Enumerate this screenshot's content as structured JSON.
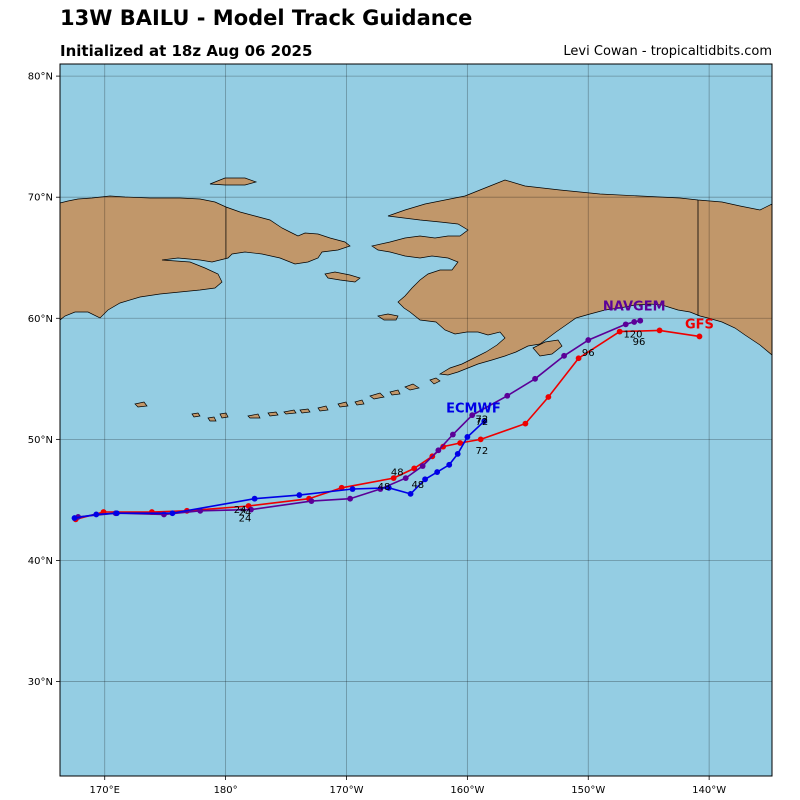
{
  "header": {
    "title": "13W BAILU - Model Track Guidance",
    "subtitle": "Initialized at 18z Aug 06 2025",
    "credit": "Levi Cowan - tropicaltidbits.com"
  },
  "colors": {
    "ocean": "#94cde3",
    "land": "#c1976a",
    "gfs": "#ee0000",
    "navgem": "#5b0098",
    "ecmwf": "#0000e6"
  },
  "map": {
    "lon_range": [
      166.3,
      225.2
    ],
    "lat_range": [
      22.2,
      81.0
    ],
    "lat_ticks": [
      "30°N",
      "40°N",
      "50°N",
      "60°N",
      "70°N",
      "80°N"
    ],
    "lon_ticks": [
      "170°E",
      "180°",
      "170°W",
      "160°W",
      "150°W",
      "140°W"
    ]
  },
  "chart_data": {
    "type": "scatter",
    "title": "13W BAILU - Model Track Guidance",
    "series": [
      {
        "name": "GFS",
        "label": "GFS",
        "color": "#ee0000",
        "points": [
          [
            167.6,
            43.4
          ],
          [
            169.9,
            44.0
          ],
          [
            173.9,
            44.0
          ],
          [
            176.8,
            44.1
          ],
          [
            181.9,
            44.5
          ],
          [
            186.9,
            45.1
          ],
          [
            189.6,
            46.0
          ],
          [
            193.9,
            46.8
          ],
          [
            195.6,
            47.6
          ],
          [
            197.1,
            48.6
          ],
          [
            198.0,
            49.4
          ],
          [
            199.4,
            49.7
          ],
          [
            201.1,
            50.0
          ],
          [
            204.8,
            51.3
          ],
          [
            206.7,
            53.5
          ],
          [
            209.2,
            56.7
          ],
          [
            212.6,
            58.9
          ],
          [
            215.9,
            59.0
          ],
          [
            219.2,
            58.5
          ]
        ],
        "hour_labels": [
          [
            "24",
            181.6,
            43.2
          ],
          [
            "48",
            193.1,
            45.8
          ],
          [
            "72",
            201.2,
            48.8
          ],
          [
            "96",
            214.2,
            57.8
          ]
        ]
      },
      {
        "name": "NAVGEM",
        "label": "NAVGEM",
        "color": "#5b0098",
        "points": [
          [
            167.8,
            43.6
          ],
          [
            170.9,
            43.9
          ],
          [
            174.9,
            43.8
          ],
          [
            177.9,
            44.1
          ],
          [
            182.1,
            44.2
          ],
          [
            187.1,
            44.9
          ],
          [
            190.3,
            45.1
          ],
          [
            192.8,
            45.9
          ],
          [
            194.9,
            46.8
          ],
          [
            196.3,
            47.8
          ],
          [
            197.6,
            49.1
          ],
          [
            198.8,
            50.4
          ],
          [
            200.4,
            52.0
          ],
          [
            203.3,
            53.6
          ],
          [
            205.6,
            55.0
          ],
          [
            208.0,
            56.9
          ],
          [
            210.0,
            58.2
          ],
          [
            213.1,
            59.5
          ],
          [
            213.8,
            59.7
          ],
          [
            214.3,
            59.8
          ]
        ],
        "hour_labels": [
          [
            "24",
            181.6,
            43.7
          ],
          [
            "48",
            194.2,
            47.0
          ],
          [
            "72",
            201.2,
            51.4
          ],
          [
            "96",
            210.0,
            56.9
          ],
          [
            "120",
            213.7,
            58.4
          ]
        ]
      },
      {
        "name": "ECMWF",
        "label": "ECMWF",
        "color": "#0000e6",
        "points": [
          [
            167.5,
            43.5
          ],
          [
            169.3,
            43.8
          ],
          [
            171.0,
            43.9
          ],
          [
            175.6,
            43.9
          ],
          [
            182.4,
            45.1
          ],
          [
            186.1,
            45.4
          ],
          [
            190.5,
            45.9
          ],
          [
            193.5,
            46.0
          ],
          [
            195.3,
            45.5
          ],
          [
            196.5,
            46.7
          ],
          [
            197.5,
            47.3
          ],
          [
            198.5,
            47.9
          ],
          [
            199.2,
            48.8
          ],
          [
            200.0,
            50.2
          ],
          [
            201.4,
            51.5
          ]
        ],
        "hour_labels": [
          [
            "24",
            181.2,
            43.9
          ],
          [
            "48",
            195.9,
            46.0
          ],
          [
            "72",
            201.2,
            51.2
          ]
        ]
      }
    ]
  }
}
